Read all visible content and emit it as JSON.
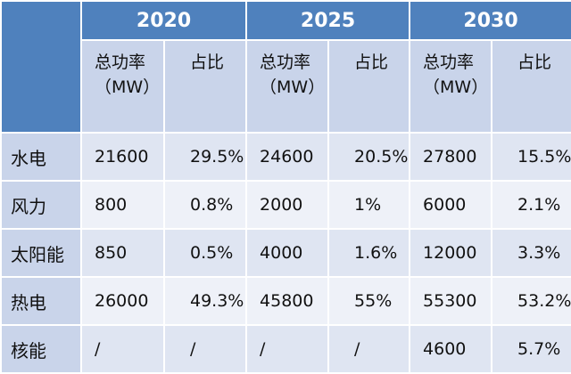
{
  "years": [
    "2020",
    "2025",
    "2030"
  ],
  "sub_headers": {
    "power_line1": "总功率",
    "power_line2": "（MW）",
    "ratio": "占比"
  },
  "rows": [
    {
      "label": "水电",
      "cells": [
        "21600",
        "29.5%",
        "24600",
        "20.5%",
        "27800",
        "15.5%"
      ]
    },
    {
      "label": "风力",
      "cells": [
        "800",
        "0.8%",
        "2000",
        "1%",
        "6000",
        "2.1%"
      ]
    },
    {
      "label": "太阳能",
      "cells": [
        "850",
        "0.5%",
        "4000",
        "1.6%",
        "12000",
        "3.3%"
      ]
    },
    {
      "label": "热电",
      "cells": [
        "26000",
        "49.3%",
        "45800",
        "55%",
        "55300",
        "53.2%"
      ]
    },
    {
      "label": "核能",
      "cells": [
        "/",
        "/",
        "/",
        "/",
        "4600",
        "5.7%"
      ]
    }
  ],
  "colors": {
    "header_bg": "#4f81bd",
    "sub_header_bg": "#c9d4ea",
    "row_dark": "#dfe5f2",
    "row_light": "#eef1f8"
  }
}
